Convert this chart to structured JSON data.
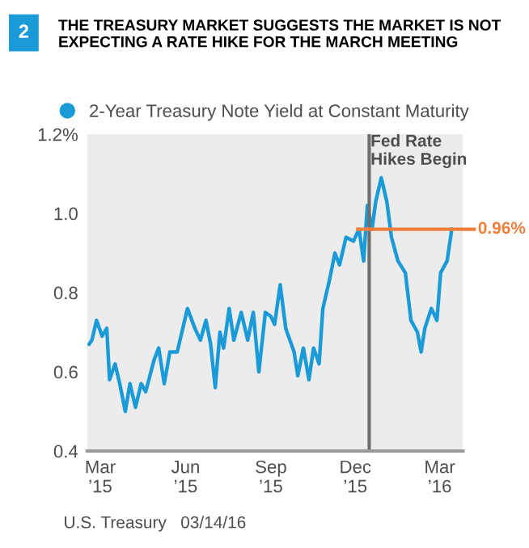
{
  "chart_data": {
    "type": "line",
    "title": "THE TREASURY MARKET SUGGESTS THE MARKET IS NOT\nEXPECTING A RATE HIKE FOR THE MARCH MEETING",
    "annotations": [
      "2",
      "U.S. Treasury   03/14/16"
    ],
    "x": [
      "2015-02-17",
      "2015-02-20",
      "2015-02-25",
      "2015-03-03",
      "2015-03-08",
      "2015-03-11",
      "2015-03-17",
      "2015-03-22",
      "2015-03-28",
      "2015-04-02",
      "2015-04-08",
      "2015-04-14",
      "2015-04-19",
      "2015-04-28",
      "2015-05-03",
      "2015-05-09",
      "2015-05-15",
      "2015-05-23",
      "2015-05-27",
      "2015-06-03",
      "2015-06-11",
      "2015-06-17",
      "2015-06-23",
      "2015-06-28",
      "2015-07-03",
      "2015-07-08",
      "2015-07-12",
      "2015-07-18",
      "2015-07-23",
      "2015-07-31",
      "2015-08-07",
      "2015-08-13",
      "2015-08-19",
      "2015-08-26",
      "2015-09-01",
      "2015-09-05",
      "2015-09-11",
      "2015-09-17",
      "2015-09-26",
      "2015-09-30",
      "2015-10-06",
      "2015-10-12",
      "2015-10-17",
      "2015-10-23",
      "2015-10-27",
      "2015-11-03",
      "2015-11-09",
      "2015-11-14",
      "2015-11-21",
      "2015-11-29",
      "2015-12-05",
      "2015-12-10",
      "2015-12-14",
      "2015-12-19",
      "2015-12-23",
      "2015-12-29",
      "2016-01-04",
      "2016-01-09",
      "2016-01-16",
      "2016-01-24",
      "2016-01-30",
      "2016-02-06",
      "2016-02-10",
      "2016-02-14",
      "2016-02-21",
      "2016-02-27",
      "2016-03-02",
      "2016-03-09",
      "2016-03-14"
    ],
    "series": [
      {
        "name": "2-Year Treasury Note Yield at Constant Maturity",
        "color": "#1a9ad6",
        "values": [
          0.67,
          0.68,
          0.73,
          0.69,
          0.71,
          0.58,
          0.62,
          0.57,
          0.5,
          0.57,
          0.51,
          0.57,
          0.55,
          0.63,
          0.66,
          0.57,
          0.65,
          0.65,
          0.69,
          0.76,
          0.71,
          0.68,
          0.73,
          0.67,
          0.56,
          0.7,
          0.66,
          0.76,
          0.68,
          0.75,
          0.68,
          0.75,
          0.6,
          0.75,
          0.74,
          0.72,
          0.82,
          0.71,
          0.65,
          0.59,
          0.66,
          0.58,
          0.66,
          0.62,
          0.76,
          0.83,
          0.9,
          0.87,
          0.94,
          0.93,
          0.96,
          0.88,
          1.02,
          0.96,
          1.03,
          1.09,
          1.03,
          0.94,
          0.88,
          0.85,
          0.73,
          0.7,
          0.65,
          0.71,
          0.76,
          0.73,
          0.85,
          0.88,
          0.96
        ]
      }
    ],
    "xlim": [
      "2015-02-15",
      "2016-03-26"
    ],
    "xticks": [
      {
        "value": "2015-03-01",
        "label": "Mar\n’15"
      },
      {
        "value": "2015-06-01",
        "label": "Jun\n’15"
      },
      {
        "value": "2015-09-01",
        "label": "Sep\n’15"
      },
      {
        "value": "2015-12-01",
        "label": "Dec\n’15"
      },
      {
        "value": "2016-03-01",
        "label": "Mar\n’16"
      }
    ],
    "ylim": [
      0.4,
      1.2
    ],
    "yticks": [
      0.4,
      0.6,
      0.8,
      {
        "value": 1.0,
        "label": "1.0"
      },
      {
        "value": 1.2,
        "label": "1.2%"
      }
    ],
    "ref_lines": [
      {
        "axis": "x",
        "value": "2015-12-16",
        "label": "Fed Rate\nHikes Begin",
        "color": "#6d6e70"
      },
      {
        "axis": "y",
        "value": 0.96,
        "label": "0.96%",
        "color": "#f07f3c"
      }
    ],
    "legend": "top left",
    "grid": false,
    "marker": "none",
    "line_style": "solid"
  }
}
